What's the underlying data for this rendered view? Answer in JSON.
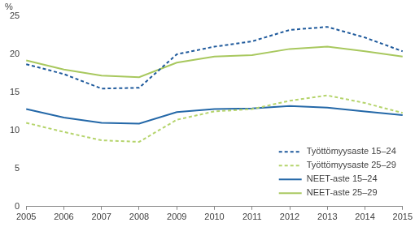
{
  "chart_data": {
    "type": "line",
    "ylabel": "%",
    "categories": [
      "2005",
      "2006",
      "2007",
      "2008",
      "2009",
      "2010",
      "2011",
      "2012",
      "2013",
      "2014",
      "2015"
    ],
    "series": [
      {
        "name": "Työttömyysaste 15–24",
        "color": "#1f5a9c",
        "line_style": "dashed",
        "values": [
          18.7,
          17.4,
          15.5,
          15.6,
          20.0,
          21.0,
          21.7,
          23.2,
          23.6,
          22.2,
          20.4
        ]
      },
      {
        "name": "Työttömyysaste 25–29",
        "color": "#b5d46c",
        "line_style": "dashed",
        "values": [
          11.0,
          9.8,
          8.7,
          8.5,
          11.4,
          12.5,
          12.8,
          13.9,
          14.6,
          13.6,
          12.3
        ]
      },
      {
        "name": "NEET-aste 15–24",
        "color": "#2468a8",
        "line_style": "solid",
        "values": [
          12.8,
          11.7,
          11.0,
          10.9,
          12.4,
          12.8,
          12.9,
          13.2,
          13.0,
          12.5,
          12.0
        ]
      },
      {
        "name": "NEET-aste 25–29",
        "color": "#a8c85e",
        "line_style": "solid",
        "values": [
          19.2,
          18.0,
          17.2,
          17.0,
          18.9,
          19.7,
          19.9,
          20.7,
          21.0,
          20.4,
          19.7
        ]
      }
    ],
    "ylim": [
      0,
      25
    ],
    "yticks": [
      0,
      5,
      10,
      15,
      20,
      25
    ],
    "grid": false,
    "legend": "lower right"
  }
}
